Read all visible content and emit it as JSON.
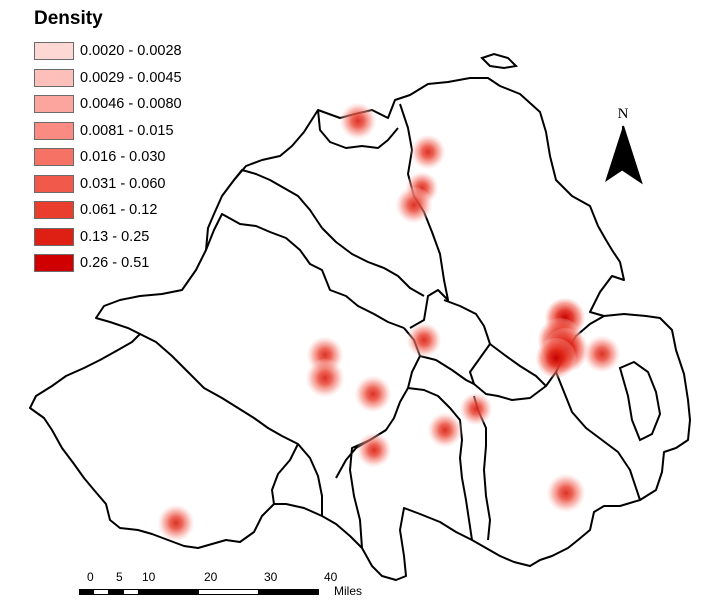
{
  "legend": {
    "title": "Density",
    "classes": [
      {
        "label": "0.0020 - 0.0028",
        "color": "#fcd7d4"
      },
      {
        "label": "0.0029 - 0.0045",
        "color": "#fcbfba"
      },
      {
        "label": "0.0046 - 0.0080",
        "color": "#fba59e"
      },
      {
        "label": "0.0081 - 0.015",
        "color": "#f98b82"
      },
      {
        "label": "0.016 - 0.030",
        "color": "#f67265"
      },
      {
        "label": "0.031 - 0.060",
        "color": "#f15a4a"
      },
      {
        "label": "0.061 - 0.12",
        "color": "#e93e2e"
      },
      {
        "label": "0.13 - 0.25",
        "color": "#dd2013"
      },
      {
        "label": "0.26 - 0.51",
        "color": "#d00000"
      }
    ]
  },
  "north_arrow": {
    "label": "N"
  },
  "scale_bar": {
    "ticks": [
      "0",
      "5",
      "10",
      "20",
      "30",
      "40"
    ],
    "units": "Miles"
  },
  "map": {
    "border_color": "#000000",
    "background": "#ffffff",
    "hotspot_color": "#e8412c",
    "peak_color": "#d00000"
  }
}
